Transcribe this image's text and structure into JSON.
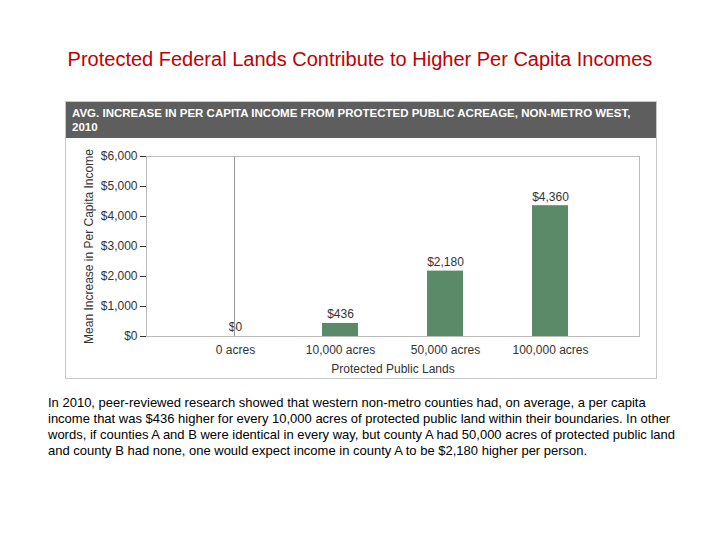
{
  "chart_data": {
    "type": "bar",
    "title": "Protected Federal Lands Contribute to Higher Per Capita Incomes",
    "subtitle": "AVG. INCREASE IN PER CAPITA INCOME FROM PROTECTED PUBLIC ACREAGE, NON-METRO WEST, 2010",
    "x_label": "Protected Public Lands",
    "y_label": "Mean Increase in Per Capita Income",
    "caption": "In 2010, peer-reviewed research showed that western non-metro counties had, on average, a per capita income that was $436 higher for every 10,000 acres of protected public land within their boundaries. In other words, if counties A and B were identical in every way, but county A had 50,000 acres of protected public land and county B had none, one would expect income in county A to be $2,180 higher per person.",
    "categories": [
      "0 acres",
      "10,000 acres",
      "50,000 acres",
      "100,000 acres"
    ],
    "values": [
      0,
      436,
      2180,
      4360
    ],
    "value_labels": [
      "$0",
      "$436",
      "$2,180",
      "$4,360"
    ],
    "color": "#5b8a68",
    "ylim": [
      0,
      6000
    ],
    "yticks": [
      {
        "value": 0,
        "label": "$0"
      },
      {
        "value": 1000,
        "label": "$1,000"
      },
      {
        "value": 2000,
        "label": "$2,000"
      },
      {
        "value": 3000,
        "label": "$3,000"
      },
      {
        "value": 4000,
        "label": "$4,000"
      },
      {
        "value": 5000,
        "label": "$5,000"
      },
      {
        "value": 6000,
        "label": "$6,000"
      }
    ],
    "grid": false,
    "data_labels": true
  }
}
